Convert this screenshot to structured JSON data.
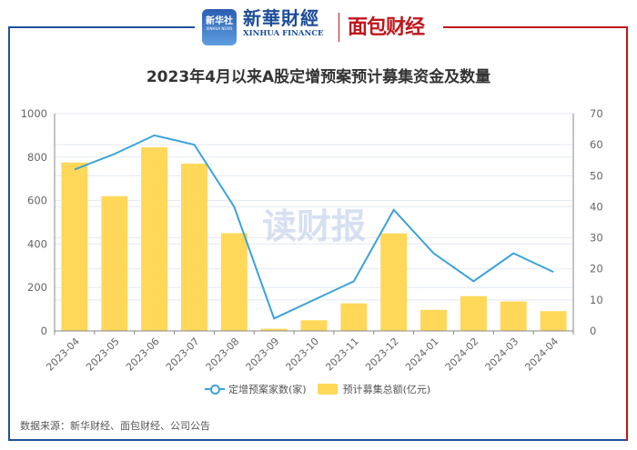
{
  "branding": {
    "xinhua_icon_text": "新华社",
    "xinhua_icon_sub": "XINHUA NEWS",
    "xinhua_cn": "新華財經",
    "xinhua_en": "XINHUA FINANCE",
    "mianbao": "面包财经"
  },
  "title": "2023年4月以来A股定增预案预计募集资金及数量",
  "watermark": "读财报",
  "legend": {
    "line_label": "定增预案家数(家)",
    "bar_label": "预计募集总额(亿元)"
  },
  "source": "数据来源：新华财经、面包财经、公司公告",
  "colors": {
    "bar": "#ffd85a",
    "line": "#3aa3da",
    "frame_blue": "#1f4f9c",
    "frame_red": "#c0161b"
  },
  "left_axis_ticks": [
    "0",
    "200",
    "400",
    "600",
    "800",
    "1000"
  ],
  "right_axis_ticks": [
    "0",
    "10",
    "20",
    "30",
    "40",
    "50",
    "60",
    "70"
  ],
  "chart_data": {
    "type": "bar",
    "title": "2023年4月以来A股定增预案预计募集资金及数量",
    "categories": [
      "2023-04",
      "2023-05",
      "2023-06",
      "2023-07",
      "2023-08",
      "2023-09",
      "2023-10",
      "2023-11",
      "2023-12",
      "2024-01",
      "2024-02",
      "2024-03",
      "2024-04"
    ],
    "series": [
      {
        "name": "预计募集总额(亿元)",
        "type": "bar",
        "axis": "left",
        "values": [
          775,
          620,
          845,
          770,
          450,
          10,
          49,
          127,
          449,
          97,
          160,
          136,
          91
        ]
      },
      {
        "name": "定增预案家数(家)",
        "type": "line",
        "axis": "right",
        "values": [
          52,
          57,
          63,
          60,
          40,
          4,
          10,
          16,
          39,
          25,
          16,
          25,
          19
        ]
      }
    ],
    "xlabel": "",
    "ylabel_left": "",
    "ylabel_right": "",
    "ylim_left": [
      0,
      1000
    ],
    "ylim_right": [
      0,
      70
    ],
    "grid": true,
    "legend_position": "bottom"
  }
}
